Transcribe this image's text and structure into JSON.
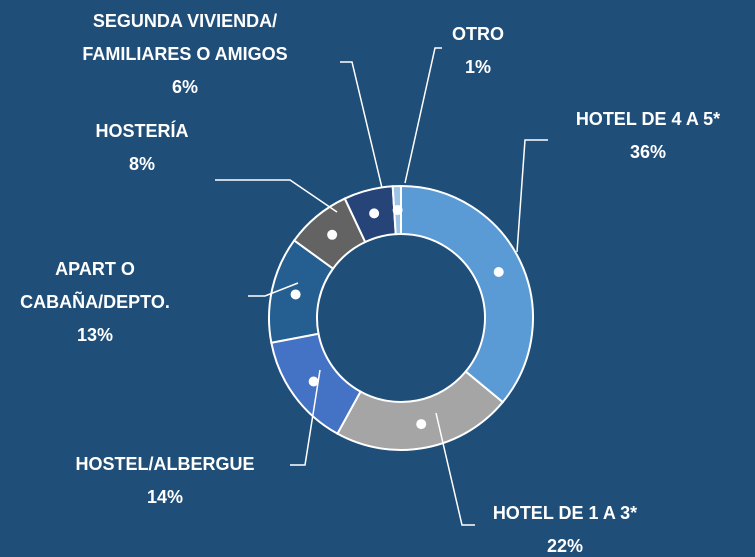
{
  "chart_data": {
    "type": "donut",
    "categories": [
      "HOTEL DE 4 A 5*",
      "HOTEL DE 1 A 3*",
      "HOSTEL/ALBERGUE",
      "APART O\nCABAÑA/DEPTO.",
      "HOSTERÍA",
      "SEGUNDA VIVIENDA/\nFAMILIARES O AMIGOS",
      "OTRO"
    ],
    "values": [
      36,
      22,
      14,
      13,
      8,
      6,
      1
    ],
    "value_labels": [
      "36%",
      "22%",
      "14%",
      "13%",
      "8%",
      "6%",
      "1%"
    ],
    "colors": [
      "#5b9bd5",
      "#a5a5a5",
      "#4472c4",
      "#255e91",
      "#636363",
      "#264478",
      "#9dc3e6"
    ]
  }
}
